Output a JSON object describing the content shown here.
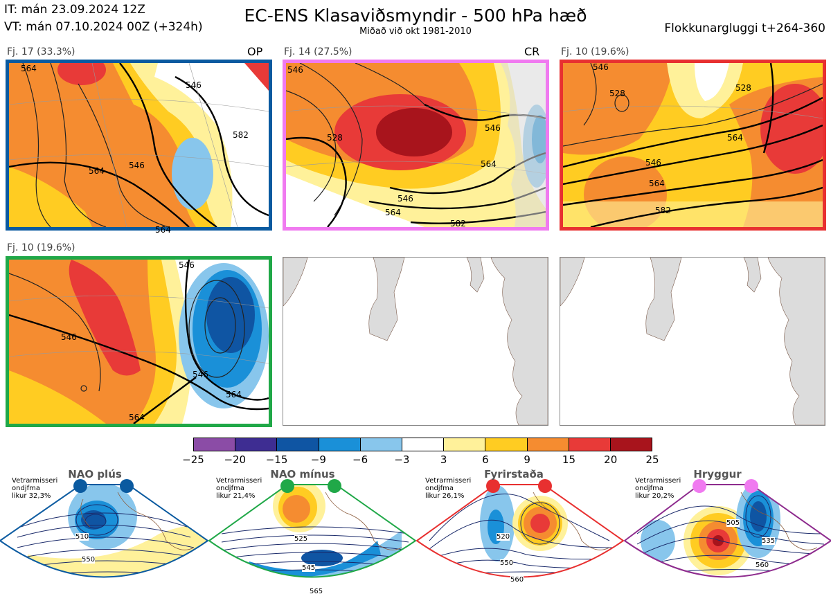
{
  "header": {
    "it": "IT: mán 23.09.2024 12Z",
    "vt": "VT: mán 07.10.2024 00Z  (+324h)",
    "title": "EC-ENS Klasaviðsmyndir - 500 hPa hæð",
    "subtitle": "Miðað við okt 1981-2010",
    "window": "Flokkunargluggi t+264-360"
  },
  "panels": [
    {
      "label": "Fj. 17 (33.3%)",
      "tag": "OP",
      "border": "#0a5aa0",
      "contours": [
        "564",
        "546",
        "546",
        "564",
        "582",
        "564"
      ]
    },
    {
      "label": "Fj. 14 (27.5%)",
      "tag": "CR",
      "border": "#f07af0",
      "contours": [
        "546",
        "528",
        "546",
        "564",
        "546",
        "564",
        "582"
      ]
    },
    {
      "label": "Fj. 10 (19.6%)",
      "tag": "",
      "border": "#e83030",
      "contours": [
        "528",
        "546",
        "528",
        "546",
        "564",
        "564",
        "582"
      ]
    },
    {
      "label": "Fj. 10 (19.6%)",
      "tag": "",
      "border": "#20a848",
      "contours": [
        "546",
        "546",
        "546",
        "564",
        "564"
      ]
    },
    {
      "label": "",
      "tag": "",
      "border": "#888888",
      "contours": []
    },
    {
      "label": "",
      "tag": "",
      "border": "#888888",
      "contours": []
    }
  ],
  "colorbar": {
    "levels": [
      "−25",
      "−20",
      "−15",
      "−9",
      "−6",
      "−3",
      "3",
      "6",
      "9",
      "15",
      "20",
      "25"
    ],
    "colors": [
      "#8b4ca6",
      "#3e2d92",
      "#0f55a3",
      "#1a90d8",
      "#88c6ec",
      "#ffffff",
      "#fff19a",
      "#ffcc22",
      "#f58c30",
      "#e83a38",
      "#a8141c"
    ]
  },
  "regimes": [
    {
      "name": "NAO plús",
      "stat1": "Vetrarmisseri",
      "stat2": "ondjfma",
      "stat3": "likur 32,3%",
      "border": "#0a5aa0",
      "dot": "#0a5aa0",
      "contours": [
        "510",
        "550"
      ]
    },
    {
      "name": "NAO mínus",
      "stat1": "Vetrarmisseri",
      "stat2": "ondjfma",
      "stat3": "likur 21,4%",
      "border": "#20a848",
      "dot": "#20a848",
      "contours": [
        "525",
        "545",
        "565"
      ]
    },
    {
      "name": "Fyrirstaða",
      "stat1": "Vetrarmisseri",
      "stat2": "ondjfma",
      "stat3": "likur 26,1%",
      "border": "#e83030",
      "dot": "#e83030",
      "contours": [
        "520",
        "550",
        "560"
      ]
    },
    {
      "name": "Hryggur",
      "stat1": "Vetrarmisseri",
      "stat2": "ondjfma",
      "stat3": "likur 20,2%",
      "border": "#8e2c8e",
      "dot": "#f07af0",
      "contours": [
        "505",
        "535",
        "560"
      ]
    }
  ]
}
